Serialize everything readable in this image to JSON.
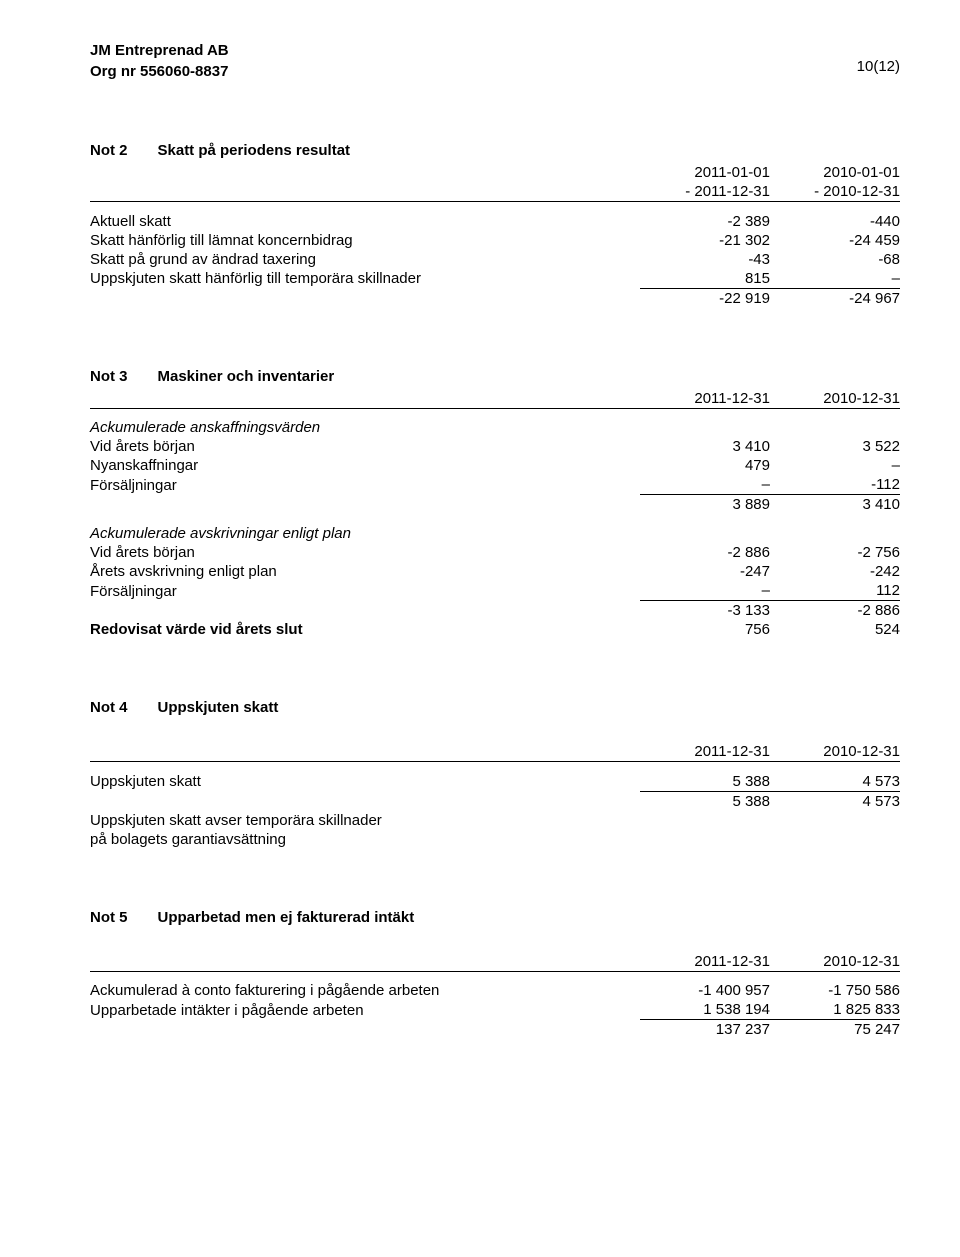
{
  "header": {
    "company": "JM Entreprenad AB",
    "org": "Org nr 556060-8837",
    "page": "10(12)"
  },
  "note2": {
    "num": "Not 2",
    "title": "Skatt på periodens resultat",
    "col1a": "2011-01-01",
    "col1b": "- 2011-12-31",
    "col2a": "2010-01-01",
    "col2b": "- 2010-12-31",
    "rows": [
      {
        "label": "Aktuell skatt",
        "v1": "-2 389",
        "v2": "-440"
      },
      {
        "label": "Skatt hänförlig till lämnat koncernbidrag",
        "v1": "-21 302",
        "v2": "-24 459"
      },
      {
        "label": "Skatt på grund av ändrad taxering",
        "v1": "-43",
        "v2": "-68"
      },
      {
        "label": "Uppskjuten skatt hänförlig till temporära skillnader",
        "v1": "815",
        "v2": "–"
      }
    ],
    "total": {
      "v1": "-22 919",
      "v2": "-24 967"
    }
  },
  "note3": {
    "num": "Not 3",
    "title": "Maskiner och inventarier",
    "col1": "2011-12-31",
    "col2": "2010-12-31",
    "group1_title": "Ackumulerade anskaffningsvärden",
    "g1": [
      {
        "label": "Vid årets början",
        "v1": "3 410",
        "v2": "3 522"
      },
      {
        "label": "Nyanskaffningar",
        "v1": "479",
        "v2": "–"
      },
      {
        "label": "Försäljningar",
        "v1": "–",
        "v2": "-112"
      }
    ],
    "g1_total": {
      "v1": "3 889",
      "v2": "3 410"
    },
    "group2_title": "Ackumulerade avskrivningar enligt plan",
    "g2": [
      {
        "label": "Vid årets början",
        "v1": "-2 886",
        "v2": "-2 756"
      },
      {
        "label": "Årets avskrivning enligt plan",
        "v1": "-247",
        "v2": "-242"
      },
      {
        "label": "Försäljningar",
        "v1": "–",
        "v2": "112"
      }
    ],
    "g2_total": {
      "v1": "-3 133",
      "v2": "-2 886"
    },
    "book_label": "Redovisat värde vid årets slut",
    "book": {
      "v1": "756",
      "v2": "524"
    }
  },
  "note4": {
    "num": "Not 4",
    "title": "Uppskjuten skatt",
    "col1": "2011-12-31",
    "col2": "2010-12-31",
    "row_label": "Uppskjuten skatt",
    "row": {
      "v1": "5 388",
      "v2": "4 573"
    },
    "total": {
      "v1": "5 388",
      "v2": "4 573"
    },
    "tail1": "Uppskjuten skatt avser temporära skillnader",
    "tail2": "på bolagets garantiavsättning"
  },
  "note5": {
    "num": "Not 5",
    "title": "Upparbetad men ej fakturerad intäkt",
    "col1": "2011-12-31",
    "col2": "2010-12-31",
    "rows": [
      {
        "label": "Ackumulerad à conto fakturering i pågående arbeten",
        "v1": "-1 400 957",
        "v2": "-1 750 586"
      },
      {
        "label": "Upparbetade intäkter i pågående arbeten",
        "v1": "1 538 194",
        "v2": "1 825 833"
      }
    ],
    "total": {
      "v1": "137 237",
      "v2": "75 247"
    }
  }
}
